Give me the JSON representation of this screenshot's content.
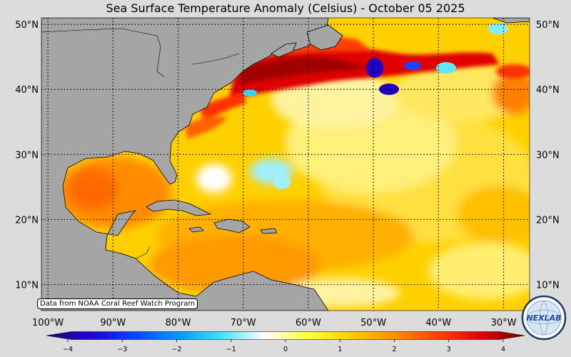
{
  "title": "Sea Surface Temperature Anomaly (Celsius) - October 05 2025",
  "credit": "Data from NOAA Coral Reef Watch Program",
  "logo_text": "NEXLAB",
  "map": {
    "lon_labels": [
      "100°W",
      "90°W",
      "80°W",
      "70°W",
      "60°W",
      "50°W",
      "40°W",
      "30°W"
    ],
    "lat_labels": [
      "50°N",
      "40°N",
      "30°N",
      "20°N",
      "10°N"
    ],
    "lon_range": [
      -101,
      -26
    ],
    "lat_range": [
      6,
      51
    ],
    "land_color": "#a5a5a5",
    "ocean_base_color": "#ffd000"
  },
  "colorbar": {
    "ticks": [
      "−4",
      "−3",
      "−2",
      "−1",
      "0",
      "1",
      "2",
      "3",
      "4"
    ],
    "range": [
      -4,
      4
    ],
    "colors": [
      "#2a0070",
      "#1f00d0",
      "#0a40ff",
      "#0095ff",
      "#40e0ff",
      "#ffffff",
      "#ffff40",
      "#ffd000",
      "#ff9000",
      "#ff4000",
      "#e00000",
      "#700000"
    ]
  }
}
